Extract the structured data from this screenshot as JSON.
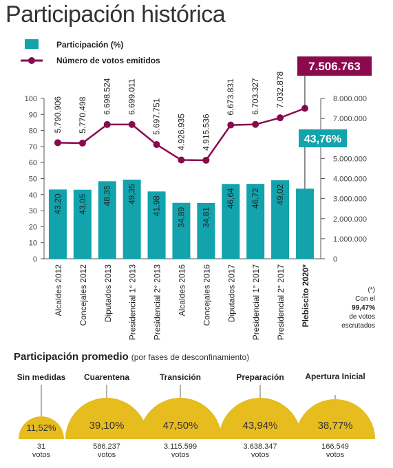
{
  "title": "Participación histórica",
  "legend": {
    "participation": "Participación (%)",
    "votes": "Número de votos emitidos"
  },
  "colors": {
    "bar": "#12a3ad",
    "line": "#8a0a4d",
    "semicircle": "#e6bc1e",
    "axis": "#555555"
  },
  "chart_data": {
    "type": "bar",
    "categories": [
      "Alcaldes 2012",
      "Concejales 2012",
      "Diputados 2013",
      "Presidencial 1° 2013",
      "Presidencial 2° 2013",
      "Alcaldes 2016",
      "Concejales 2016",
      "Diputados 2017",
      "Presidencial 1° 2017",
      "Presidencial 2° 2017",
      "Plebiscito 2020*"
    ],
    "series": [
      {
        "name": "Participación (%)",
        "type": "bar",
        "axis": "left",
        "values": [
          43.2,
          43.05,
          48.35,
          49.35,
          41.98,
          34.89,
          34.81,
          46.64,
          46.72,
          49.02,
          43.76
        ],
        "labels": [
          "43,20",
          "43,05",
          "48,35",
          "49,35",
          "41,98",
          "34,89",
          "34,81",
          "46,64",
          "46,72",
          "49,02",
          "43,76%"
        ]
      },
      {
        "name": "Número de votos emitidos",
        "type": "line",
        "axis": "right",
        "values": [
          5790906,
          5770498,
          6698524,
          6699011,
          5697751,
          4926935,
          4915536,
          6673831,
          6703327,
          7032878,
          7506763
        ],
        "labels": [
          "5.790.906",
          "5.770.498",
          "6.698.524",
          "6.699.011",
          "5.697.751",
          "4.926.935",
          "4.915.536",
          "6.673.831",
          "6.703.327",
          "7.032.878",
          "7.506.763"
        ]
      }
    ],
    "left_axis": {
      "ylim": [
        0,
        100
      ],
      "ticks": [
        0,
        10,
        20,
        30,
        40,
        50,
        60,
        70,
        80,
        90,
        100
      ]
    },
    "right_axis": {
      "ylim": [
        0,
        8000000
      ],
      "ticks": [
        0,
        1000000,
        2000000,
        3000000,
        4000000,
        5000000,
        7000000,
        8000000
      ],
      "tick_labels": [
        "0",
        "1.000.000",
        "2.000.000",
        "3.000.000",
        "4.000.000",
        "5.000.000",
        "7.000.000",
        "8.000.000"
      ]
    },
    "highlight_category": "Plebiscito 2020*",
    "highlight_votes": "7.506.763",
    "highlight_pct": "43,76%"
  },
  "note": {
    "mark": "(*)",
    "line1": "Con el",
    "bold": "99,47%",
    "line2": "de votos",
    "line3": "escrutados"
  },
  "average": {
    "title": "Participación promedio",
    "subtitle": "(por fases de desconfinamiento)",
    "phases": [
      {
        "name": "Sin medidas",
        "pct": "11,52%",
        "value": 11.52,
        "votes": "31",
        "unit": "votos"
      },
      {
        "name": "Cuarentena",
        "pct": "39,10%",
        "value": 39.1,
        "votes": "586.237",
        "unit": "votos"
      },
      {
        "name": "Transición",
        "pct": "47,50%",
        "value": 47.5,
        "votes": "3.115.599",
        "unit": "votos"
      },
      {
        "name": "Preparación",
        "pct": "43,94%",
        "value": 43.94,
        "votes": "3.638.347",
        "unit": "votos"
      },
      {
        "name": "Apertura Inicial",
        "pct": "38,77%",
        "value": 38.77,
        "votes": "166.549",
        "unit": "votos"
      }
    ]
  }
}
